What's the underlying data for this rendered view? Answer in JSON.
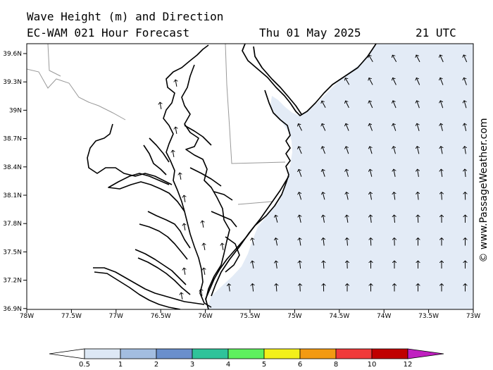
{
  "header": {
    "title_line1": "Wave Height (m) and Direction",
    "title_line2": "EC-WAM 021 Hour Forecast",
    "date": "Thu 01 May 2025",
    "time": "21 UTC"
  },
  "watermark": "© www.PassageWeather.com",
  "axes": {
    "y_ticks": [
      "39.6N",
      "39.3N",
      "39N",
      "38.7N",
      "38.4N",
      "38.1N",
      "37.8N",
      "37.5N",
      "37.2N",
      "36.9N"
    ],
    "x_ticks": [
      "78W",
      "77.5W",
      "77W",
      "76.5W",
      "76W",
      "75.5W",
      "75W",
      "74.5W",
      "74W",
      "73.5W",
      "73W"
    ]
  },
  "colorbar": {
    "labels": [
      "0.5",
      "1",
      "2",
      "3",
      "4",
      "5",
      "6",
      "8",
      "10",
      "12"
    ],
    "colors": [
      "#ffffff",
      "#dde8f5",
      "#a3bde0",
      "#6a8fcc",
      "#2fc39a",
      "#5ef05e",
      "#f3f01a",
      "#f39a12",
      "#f03a3a",
      "#c00000",
      "#c020c0"
    ]
  },
  "colors": {
    "sea_fill": "#e3ebf6",
    "land_fill": "#ffffff",
    "coastline": "#000000",
    "borders": "#999999"
  }
}
